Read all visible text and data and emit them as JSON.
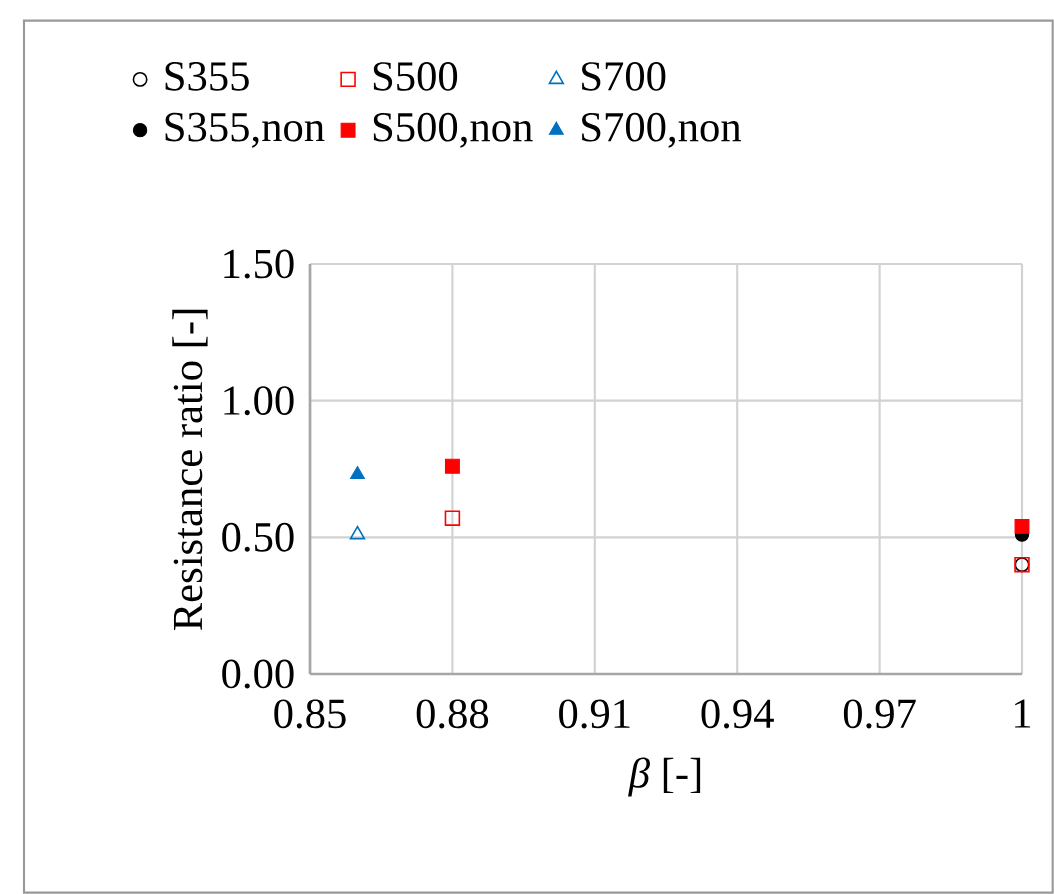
{
  "chart_data": {
    "type": "scatter",
    "xlabel": "*β* [-]",
    "ylabel": "Resistance ratio [-]",
    "xlim": [
      0.85,
      1
    ],
    "xticks": [
      0.85,
      0.88,
      0.91,
      0.94,
      0.97,
      1
    ],
    "ylim": [
      0,
      1.5
    ],
    "yticks": [
      {
        "value": 0,
        "label": "0.00"
      },
      {
        "value": 0.5,
        "label": "0.50"
      },
      {
        "value": 1,
        "label": "1.00"
      },
      {
        "value": 1.5,
        "label": "1.50"
      }
    ],
    "grid": true,
    "legend": "top",
    "series": [
      {
        "name": "S355",
        "color": "#000000",
        "marker": "circle",
        "x": [
          1
        ],
        "values": [
          0.4
        ]
      },
      {
        "name": "S500",
        "color": "#ff0000",
        "marker": "square",
        "x": [
          0.88,
          1
        ],
        "values": [
          0.57,
          0.4
        ]
      },
      {
        "name": "S700",
        "color": "#0070c0",
        "marker": "triangle",
        "x": [
          0.86
        ],
        "values": [
          0.51
        ]
      },
      {
        "name": "S355,non",
        "color": "#000000",
        "marker": "circle",
        "x": [
          1
        ],
        "values": [
          0.51
        ]
      },
      {
        "name": "S500,non",
        "color": "#ff0000",
        "marker": "square",
        "x": [
          0.88,
          1
        ],
        "values": [
          0.76,
          0.54
        ]
      },
      {
        "name": "S700,non",
        "color": "#0070c0",
        "marker": "triangle",
        "x": [
          0.86
        ],
        "values": [
          0.73
        ]
      }
    ]
  }
}
